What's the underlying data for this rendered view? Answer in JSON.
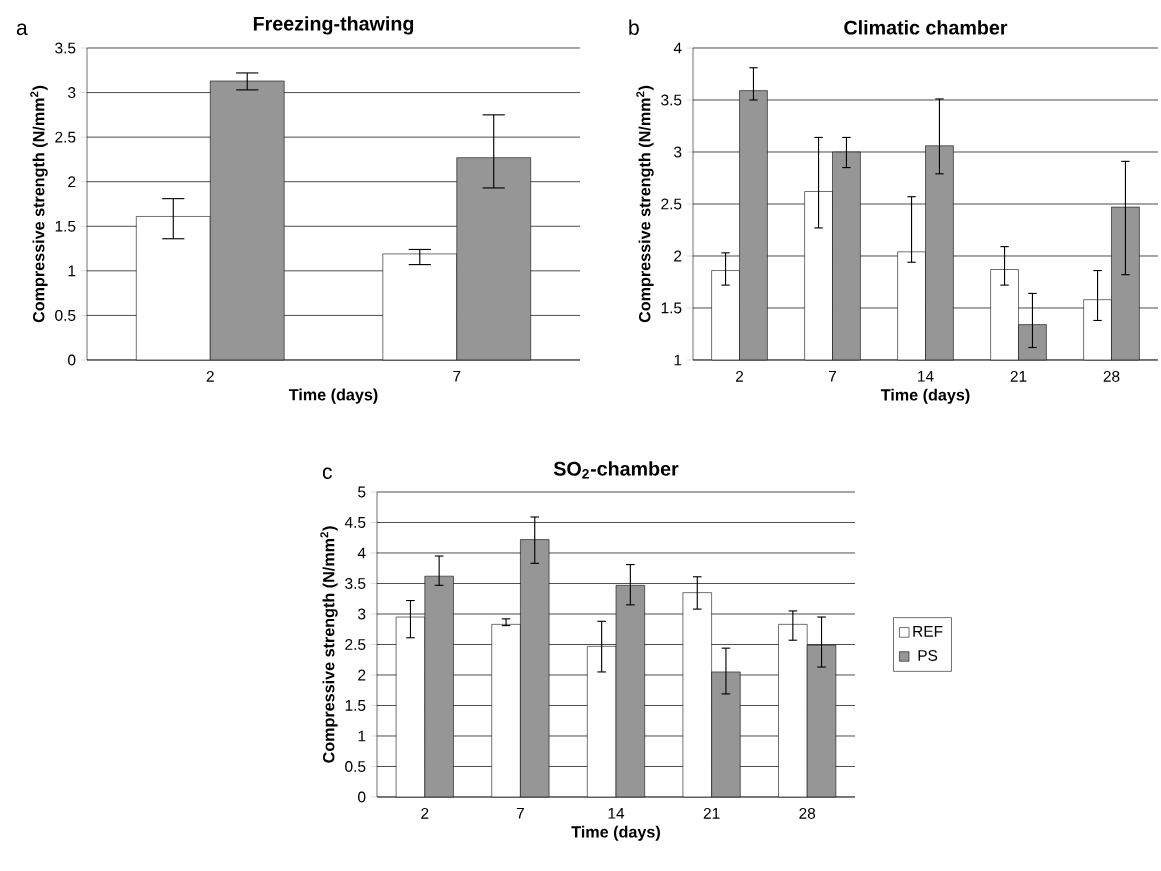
{
  "chart_data": [
    {
      "type": "bar",
      "title": "Freezing-thawing",
      "xlabel": "Time (days)",
      "ylabel": "Compressive strength (N/mm$^{2}$)",
      "annotations": [
        "a"
      ],
      "categories": [
        "2",
        "7"
      ],
      "ylim": [
        0,
        3.5
      ],
      "yticks": [
        0,
        0.5,
        1,
        1.5,
        2,
        2.5,
        3,
        3.5
      ],
      "grid": "y",
      "series": [
        {
          "color": "#ffffff",
          "values": [
            1.61,
            1.19
          ],
          "errors": [
            [
              1.36,
              1.81
            ],
            [
              1.07,
              1.24
            ]
          ]
        },
        {
          "color": "#969696",
          "values": [
            3.13,
            2.27
          ],
          "errors": [
            [
              3.03,
              3.22
            ],
            [
              1.93,
              2.75
            ]
          ]
        }
      ]
    },
    {
      "type": "bar",
      "title": "Climatic chamber",
      "xlabel": "Time (days)",
      "ylabel": "Compressive strength (N/mm$^{2}$)",
      "annotations": [
        "b"
      ],
      "categories": [
        "2",
        "7",
        "14",
        "21",
        "28"
      ],
      "ylim": [
        1,
        4
      ],
      "yticks": [
        1,
        1.5,
        2,
        2.5,
        3,
        3.5,
        4
      ],
      "grid": "y",
      "series": [
        {
          "color": "#ffffff",
          "values": [
            1.86,
            2.62,
            2.04,
            1.87,
            1.58
          ],
          "errors": [
            [
              1.72,
              2.03
            ],
            [
              2.27,
              3.14
            ],
            [
              1.94,
              2.57
            ],
            [
              1.72,
              2.09
            ],
            [
              1.38,
              1.86
            ]
          ]
        },
        {
          "color": "#969696",
          "values": [
            3.59,
            3.0,
            3.06,
            1.34,
            2.47
          ],
          "errors": [
            [
              3.5,
              3.81
            ],
            [
              2.85,
              3.14
            ],
            [
              2.79,
              3.51
            ],
            [
              1.12,
              1.64
            ],
            [
              1.82,
              2.91
            ]
          ]
        }
      ]
    },
    {
      "type": "bar",
      "title": "SO$_{2}$-chamber",
      "xlabel": "Time (days)",
      "ylabel": "Compressive strength (N/mm$^{2}$)",
      "annotations": [
        "c"
      ],
      "categories": [
        "2",
        "7",
        "14",
        "21",
        "28"
      ],
      "ylim": [
        0,
        5
      ],
      "yticks": [
        0,
        0.5,
        1,
        1.5,
        2,
        2.5,
        3,
        3.5,
        4,
        4.5,
        5
      ],
      "grid": "y",
      "legend": "right",
      "series": [
        {
          "name": "REF",
          "color": "#ffffff",
          "values": [
            2.95,
            2.83,
            2.47,
            3.35,
            2.83
          ],
          "errors": [
            [
              2.61,
              3.22
            ],
            [
              2.81,
              2.92
            ],
            [
              2.05,
              2.88
            ],
            [
              3.08,
              3.61
            ],
            [
              2.57,
              3.05
            ]
          ]
        },
        {
          "name": "PS",
          "color": "#969696",
          "values": [
            3.62,
            4.22,
            3.47,
            2.05,
            2.49
          ],
          "errors": [
            [
              3.47,
              3.95
            ],
            [
              3.83,
              4.59
            ],
            [
              3.15,
              3.81
            ],
            [
              1.69,
              2.44
            ],
            [
              2.13,
              2.95
            ]
          ]
        }
      ]
    }
  ]
}
